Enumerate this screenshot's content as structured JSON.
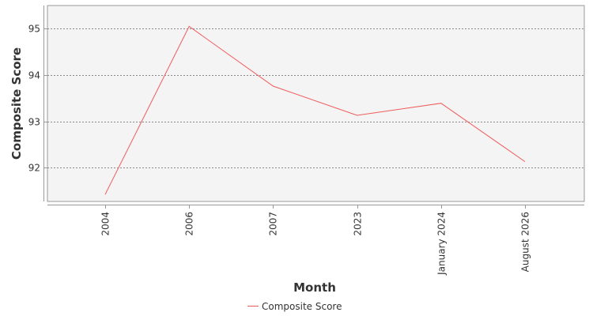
{
  "chart_data": {
    "type": "line",
    "title": "",
    "xlabel": "Month",
    "ylabel": "Composite Score",
    "categories": [
      "2004",
      "2006",
      "2007",
      "2023",
      "January 2024",
      "August 2026"
    ],
    "series": [
      {
        "name": "Composite Score",
        "values": [
          91.42,
          95.05,
          93.76,
          93.13,
          93.39,
          92.13
        ],
        "color": "#f05a5a"
      }
    ],
    "yticks": [
      92,
      93,
      94,
      95
    ],
    "ylim": [
      91.27,
      95.5
    ],
    "grid": true,
    "legend": "bottom-center",
    "colors": {
      "plot_background": "#f4f4f4",
      "plot_border": "#999999",
      "grid_line": "#8a8a8a",
      "text": "#333333"
    }
  }
}
